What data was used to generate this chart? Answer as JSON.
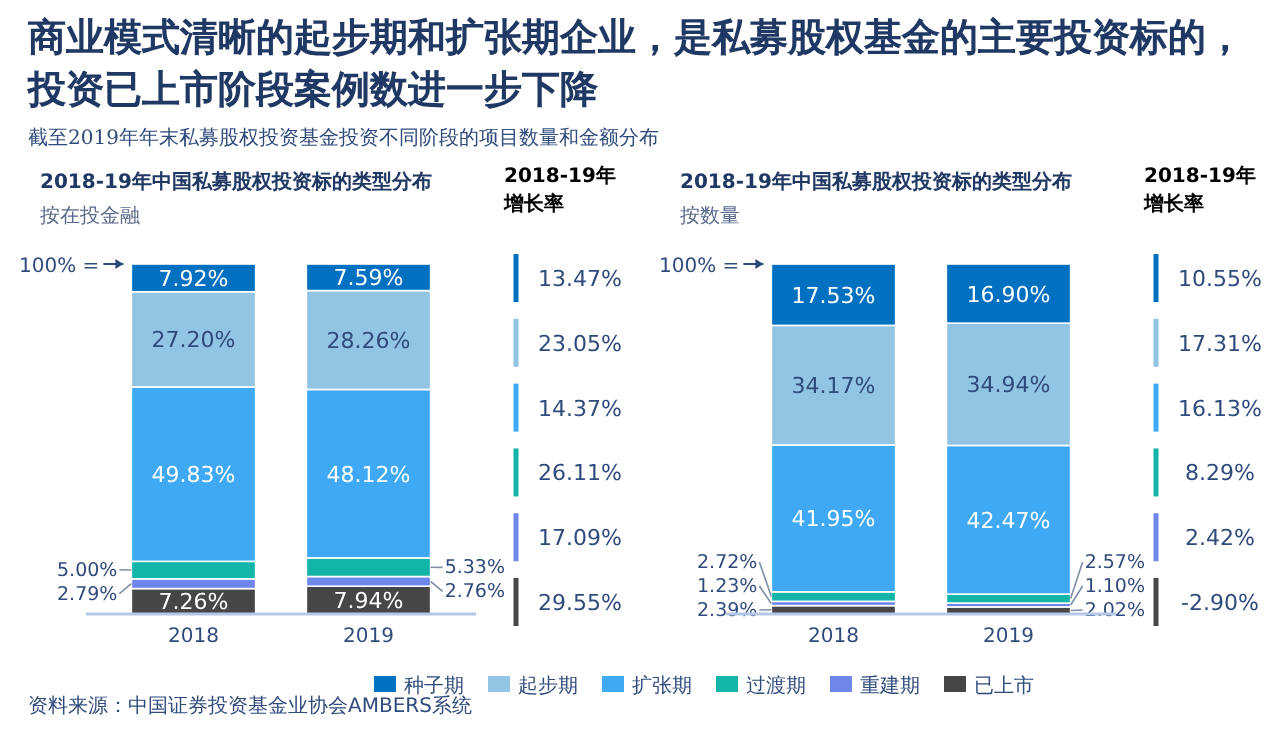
{
  "chart_data": [
    {
      "type": "bar",
      "stacked": true,
      "title": "2018-19年中国私募股权投资标的类型分布",
      "subtitle": "按在投金融",
      "categories": [
        "2018",
        "2019"
      ],
      "series": [
        {
          "color": "#464646",
          "values": [
            7.26,
            7.94
          ],
          "value_labels": [
            "7.26%",
            "7.94%"
          ]
        },
        {
          "color": "#6f86ea",
          "values": [
            2.79,
            2.76
          ],
          "value_labels": [
            "2.79%",
            "2.76%"
          ]
        },
        {
          "color": "#13b5a8",
          "values": [
            5.0,
            5.33
          ],
          "value_labels": [
            "5.00%",
            "5.33%"
          ]
        },
        {
          "color": "#3fa9f5",
          "values": [
            49.83,
            48.12
          ],
          "value_labels": [
            "49.83%",
            "48.12%"
          ]
        },
        {
          "color": "#92c5e3",
          "values": [
            27.2,
            28.26
          ],
          "value_labels": [
            "27.20%",
            "28.26%"
          ]
        },
        {
          "color": "#0070c0",
          "values": [
            7.92,
            7.59
          ],
          "value_labels": [
            "7.92%",
            "7.59%"
          ]
        }
      ],
      "annotations": [
        "商业模式清晰的起步期和扩张期企业，是私募股权基金的主要投资标的，投资已上市阶段案例数进一步下降",
        "截至2019年年末私募股权投资基金投资不同阶段的项目数量和金额分布",
        "资料来源：中国证券投资基金业协会AMBERS系统",
        "100% =",
        "2018-19年增长率",
        "13.47%",
        "23.05%",
        "14.37%",
        "26.11%",
        "17.09%",
        "29.55%"
      ]
    },
    {
      "type": "bar",
      "stacked": true,
      "legend": "bottom",
      "title": "2018-19年中国私募股权投资标的类型分布",
      "subtitle": "按数量",
      "categories": [
        "2018",
        "2019"
      ],
      "series": [
        {
          "name": "已上市",
          "color": "#464646",
          "values": [
            2.39,
            2.02
          ],
          "value_labels": [
            "2.39%",
            "2.02%"
          ]
        },
        {
          "name": "重建期",
          "color": "#6f86ea",
          "values": [
            1.23,
            1.1
          ],
          "value_labels": [
            "1.23%",
            "1.10%"
          ]
        },
        {
          "name": "过渡期",
          "color": "#13b5a8",
          "values": [
            2.72,
            2.57
          ],
          "value_labels": [
            "2.72%",
            "2.57%"
          ]
        },
        {
          "name": "扩张期",
          "color": "#3fa9f5",
          "values": [
            41.95,
            42.47
          ],
          "value_labels": [
            "41.95%",
            "42.47%"
          ]
        },
        {
          "name": "起步期",
          "color": "#92c5e3",
          "values": [
            34.17,
            34.94
          ],
          "value_labels": [
            "34.17%",
            "34.94%"
          ]
        },
        {
          "name": "种子期",
          "color": "#0070c0",
          "values": [
            17.53,
            16.9
          ],
          "value_labels": [
            "17.53%",
            "16.90%"
          ]
        }
      ],
      "annotations": [
        "100% =",
        "2018-19年增长率",
        "10.55%",
        "17.31%",
        "16.13%",
        "8.29%",
        "2.42%",
        "-2.90%"
      ]
    }
  ]
}
